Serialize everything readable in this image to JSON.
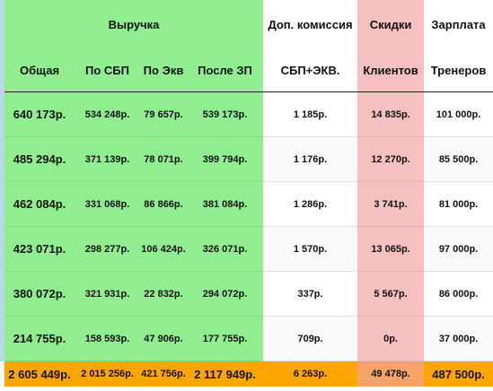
{
  "headers": {
    "revenue_group": "Выручка",
    "extra_commission": "Доп. комиссия",
    "discounts": "Скидки",
    "salary": "Зарплата",
    "total": "Общая",
    "sbp": "По СБП",
    "acq": "По Экв",
    "after_salary": "После ЗП",
    "sbp_acq": "СБП+ЭКВ.",
    "clients": "Клиентов",
    "trainers": "Тренеров"
  },
  "rows": [
    {
      "total": "640 173р.",
      "sbp": "534 248р.",
      "acq": "79 657р.",
      "after": "539 173р.",
      "commission": "1 185р.",
      "discount": "14 835р.",
      "salary": "101 000р."
    },
    {
      "total": "485 294р.",
      "sbp": "371 139р.",
      "acq": "78 071р.",
      "after": "399 794р.",
      "commission": "1 176р.",
      "discount": "12 270р.",
      "salary": "85 500р."
    },
    {
      "total": "462 084р.",
      "sbp": "331 068р.",
      "acq": "86 866р.",
      "after": "381 084р.",
      "commission": "1 286р.",
      "discount": "3 741р.",
      "salary": "81 000р."
    },
    {
      "total": "423 071р.",
      "sbp": "298 277р.",
      "acq": "106 424р.",
      "after": "326 071р.",
      "commission": "1 570р.",
      "discount": "13 065р.",
      "salary": "97 000р."
    },
    {
      "total": "380 072р.",
      "sbp": "321 931р.",
      "acq": "22 832р.",
      "after": "294 072р.",
      "commission": "337р.",
      "discount": "5 567р.",
      "salary": "86 000р."
    },
    {
      "total": "214 755р.",
      "sbp": "158 593р.",
      "acq": "47 906р.",
      "after": "177 755р.",
      "commission": "709р.",
      "discount": "0р.",
      "salary": "37 000р."
    }
  ],
  "totals": {
    "total": "2 605 449р.",
    "sbp": "2 015 256р.",
    "acq": "421 756р.",
    "after": "2 117 949р.",
    "commission": "6 263р.",
    "discount": "49 478р.",
    "salary": "487 500р."
  },
  "colors": {
    "revenue": "#90ee90",
    "discount": "#f5c0c0",
    "totals": "#ffa500"
  }
}
